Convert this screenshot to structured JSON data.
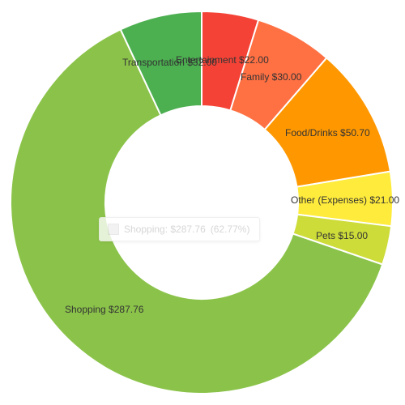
{
  "chart_data": {
    "type": "pie",
    "donut": true,
    "slices": [
      {
        "name": "Entertainment",
        "value": 22.0,
        "label": "Entertainment $22.00",
        "color": "#f44336"
      },
      {
        "name": "Family",
        "value": 30.0,
        "label": "Family $30.00",
        "color": "#ff7043"
      },
      {
        "name": "Food/Drinks",
        "value": 50.7,
        "label": "Food/Drinks $50.70",
        "color": "#ff9800"
      },
      {
        "name": "Other (Expenses)",
        "value": 21.0,
        "label": "Other (Expenses) $21.00",
        "color": "#ffeb3b"
      },
      {
        "name": "Pets",
        "value": 15.0,
        "label": "Pets $15.00",
        "color": "#cddc39"
      },
      {
        "name": "Shopping",
        "value": 287.76,
        "label": "Shopping $287.76",
        "color": "#8bc34a"
      },
      {
        "name": "Transportation",
        "value": 32.0,
        "label": "Transportation $32.00",
        "color": "#4caf50"
      }
    ],
    "tooltip": {
      "label": "Shopping: $287.76",
      "percent": "(62.77%)"
    }
  }
}
